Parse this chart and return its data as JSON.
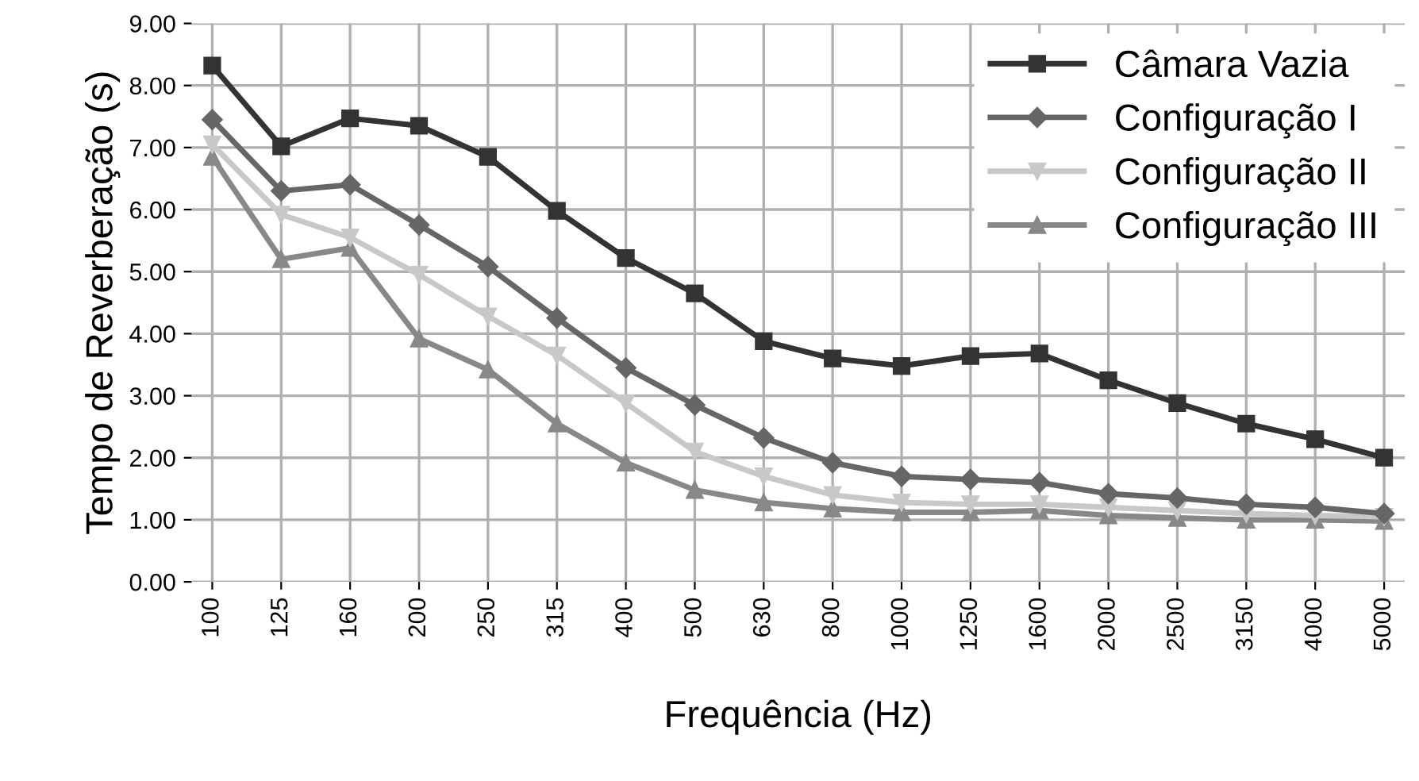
{
  "chart_data": {
    "type": "line",
    "xlabel": "Frequência (Hz)",
    "ylabel": "Tempo de Reverberação (s)",
    "categories": [
      "100",
      "125",
      "160",
      "200",
      "250",
      "315",
      "400",
      "500",
      "630",
      "800",
      "1000",
      "1250",
      "1600",
      "2000",
      "2500",
      "3150",
      "4000",
      "5000"
    ],
    "series": [
      {
        "name": "Câmara Vazia",
        "color": "#333333",
        "marker": "square",
        "values": [
          8.32,
          7.02,
          7.47,
          7.35,
          6.85,
          5.98,
          5.22,
          4.65,
          3.88,
          3.6,
          3.48,
          3.64,
          3.68,
          3.25,
          2.88,
          2.55,
          2.3,
          2.0
        ]
      },
      {
        "name": "Configuração I",
        "color": "#666666",
        "marker": "diamond",
        "values": [
          7.45,
          6.3,
          6.4,
          5.75,
          5.08,
          4.25,
          3.45,
          2.85,
          2.32,
          1.92,
          1.7,
          1.65,
          1.6,
          1.42,
          1.35,
          1.25,
          1.2,
          1.1
        ]
      },
      {
        "name": "Configuração II",
        "color": "#c8c8c8",
        "marker": "triangle_down",
        "values": [
          7.05,
          5.92,
          5.55,
          4.95,
          4.28,
          3.65,
          2.88,
          2.1,
          1.7,
          1.4,
          1.28,
          1.25,
          1.25,
          1.2,
          1.15,
          1.1,
          1.07,
          1.05
        ]
      },
      {
        "name": "Configuração III",
        "color": "#888888",
        "marker": "triangle",
        "values": [
          6.85,
          5.2,
          5.38,
          3.92,
          3.42,
          2.55,
          1.92,
          1.48,
          1.28,
          1.18,
          1.12,
          1.12,
          1.15,
          1.07,
          1.03,
          1.0,
          1.0,
          0.98
        ]
      }
    ],
    "ylim": [
      0,
      9
    ],
    "yticks": [
      {
        "value": 0,
        "label": "0.00"
      },
      {
        "value": 1,
        "label": "1.00"
      },
      {
        "value": 2,
        "label": "2.00"
      },
      {
        "value": 3,
        "label": "3.00"
      },
      {
        "value": 4,
        "label": "4.00"
      },
      {
        "value": 5,
        "label": "5.00"
      },
      {
        "value": 6,
        "label": "6.00"
      },
      {
        "value": 7,
        "label": "7.00"
      },
      {
        "value": 8,
        "label": "8.00"
      },
      {
        "value": 9,
        "label": "9.00"
      }
    ],
    "grid": true,
    "legend": "top right",
    "line_style": "solid"
  }
}
